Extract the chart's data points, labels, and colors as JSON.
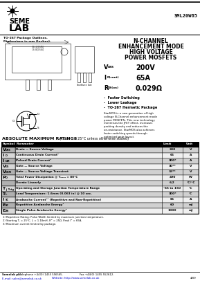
{
  "title_part": "SML20W65",
  "header_line1": "TO-267 Package Outlines.",
  "header_line2": "Dimensions in mm (Inches).",
  "part_type_line1": "N-CHANNEL",
  "part_type_line2": "ENHANCEMENT MODE",
  "part_type_line3": "HIGH VOLTAGE",
  "part_type_line4": "POWER MOSFETS",
  "spec_vdss_val": "200V",
  "spec_id_val": "65A",
  "spec_rds_val": "0.029Ω",
  "bullet1": "-  Faster Switching",
  "bullet2": "-  Lower Leakage",
  "bullet3": "-  TO-267 Hermetic Package",
  "desc": "StarMOS is a new generation of high voltage N-Channel enhancement mode power MOSFETs. This new technology minimises the JFET effect, increases packing density and reduces the on-resistance. StarMOS also achieves faster switching speeds through optimised gate layout.",
  "abs_max_title": "ABSOLUTE MAXIMUM RATINGS",
  "abs_max_cond": "(T",
  "abs_max_cond_sub": "case",
  "abs_max_cond_rest": " = 25°C unless otherwise stated)",
  "table_rows": [
    [
      "Vᴰᴸᴸ",
      "Drain — Source Voltage",
      "200",
      "V"
    ],
    [
      "Iᴰ",
      "Continuous Drain Current¹",
      "65",
      "A"
    ],
    [
      "Iᴰᴹ",
      "Pulsed Drain Current¹",
      "300*",
      "A"
    ],
    [
      "Vᴳᴸ",
      "Gate — Source Voltage",
      "30**",
      "V"
    ],
    [
      "Vᴳᴸᴹ",
      "Gate — Source Voltage Transient",
      "35**",
      "V"
    ],
    [
      "Pᴰ",
      "Total Power Dissipation @ Tₕₐₑₐ = 80°C",
      "490",
      "W"
    ],
    [
      "",
      "Derate Linearly",
      "6.2",
      "°C/°C"
    ],
    [
      "Tⱼ, Tᴸₜᴳ",
      "Operating and Storage Junction Temperature Range",
      "-65 to 150",
      "°C"
    ],
    [
      "Tᴸ",
      "Lead Temperature: 1.6mm (0.063 in) @ 10 sec.",
      "300*",
      "°C"
    ],
    [
      "Iᴸᶜ",
      "Avalanche Current¹³ (Repetitive and Non-Repetitive)",
      "65",
      "A"
    ],
    [
      "Eᴸᶜ",
      "Repetitive Avalanche Energy¹",
      "60",
      "mJ"
    ],
    [
      "Eᴬᴸ",
      "Single Pulse Avalanche Energy²",
      "1000",
      "mJ"
    ]
  ],
  "sym_labels": [
    "V_DSS",
    "I_D",
    "I_DM",
    "V_GS",
    "V_GSM",
    "P_D",
    "",
    "T_j,Tstg",
    "T_L",
    "I_SC",
    "E_SC",
    "E_AS"
  ],
  "footnote1": "1) Repetitive Rating: Pulse Width limited by maximum junction temperature.",
  "footnote2": "2) Starting Tⱼ = 25°C, L = 1.18mH, Rᴳ = 25Ω, Peak Iᴰ = 65A.",
  "footnote3": "3) Maximum current limited by package.",
  "footer_company": "Semelab plc.",
  "footer_tel": "Telephone +44(0) 1455 556565.",
  "footer_fax": "Fax +44(0) 1455 552612.",
  "footer_email": "E-mail: sales@semelab.co.uk",
  "footer_web": "Website: http://www.semelab.co.uk",
  "page_num": "4/09",
  "bg_color": "#ffffff"
}
